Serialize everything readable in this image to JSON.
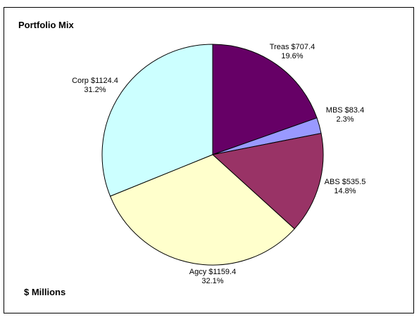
{
  "chart_data": {
    "type": "pie",
    "title": "Portfolio Mix",
    "units_note": "$ Millions",
    "slices": [
      {
        "name": "Treas",
        "value": 707.4,
        "percent": "19.6%",
        "amount": "$707.4",
        "color": "#660066"
      },
      {
        "name": "MBS",
        "value": 83.4,
        "percent": "2.3%",
        "amount": "$83.4",
        "color": "#9999ff"
      },
      {
        "name": "ABS",
        "value": 535.5,
        "percent": "14.8%",
        "amount": "$535.5",
        "color": "#993366"
      },
      {
        "name": "Agcy",
        "value": 1159.4,
        "percent": "32.1%",
        "amount": "$1159.4",
        "color": "#ffffcc"
      },
      {
        "name": "Corp",
        "value": 1124.4,
        "percent": "31.2%",
        "amount": "$1124.4",
        "color": "#ccffff"
      }
    ],
    "legend": "none"
  }
}
